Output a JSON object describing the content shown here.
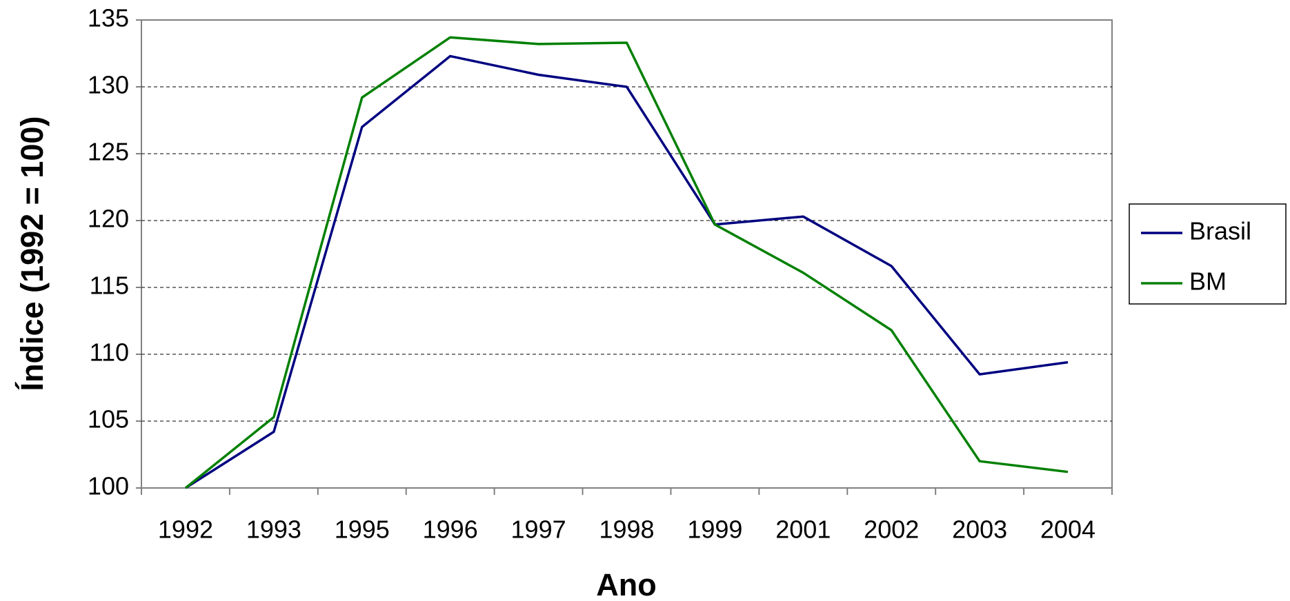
{
  "chart_data": {
    "type": "line",
    "x_label": "Ano",
    "y_label": "Índice (1992 = 100)",
    "categories": [
      "1992",
      "1993",
      "1995",
      "1996",
      "1997",
      "1998",
      "1999",
      "2001",
      "2002",
      "2003",
      "2004"
    ],
    "series": [
      {
        "name": "Brasil",
        "color": "#000080",
        "values": [
          100,
          104.2,
          127,
          132.3,
          130.9,
          130,
          119.7,
          120.3,
          116.6,
          108.5,
          109.4
        ]
      },
      {
        "name": "BM",
        "color": "#008000",
        "values": [
          100,
          105.3,
          129.2,
          133.7,
          133.2,
          133.3,
          119.7,
          116.1,
          111.8,
          102,
          101.2
        ]
      }
    ],
    "ylim": [
      100,
      135
    ],
    "yticks": [
      100,
      105,
      110,
      115,
      120,
      125,
      130,
      135
    ],
    "grid": true,
    "legend": "right"
  }
}
